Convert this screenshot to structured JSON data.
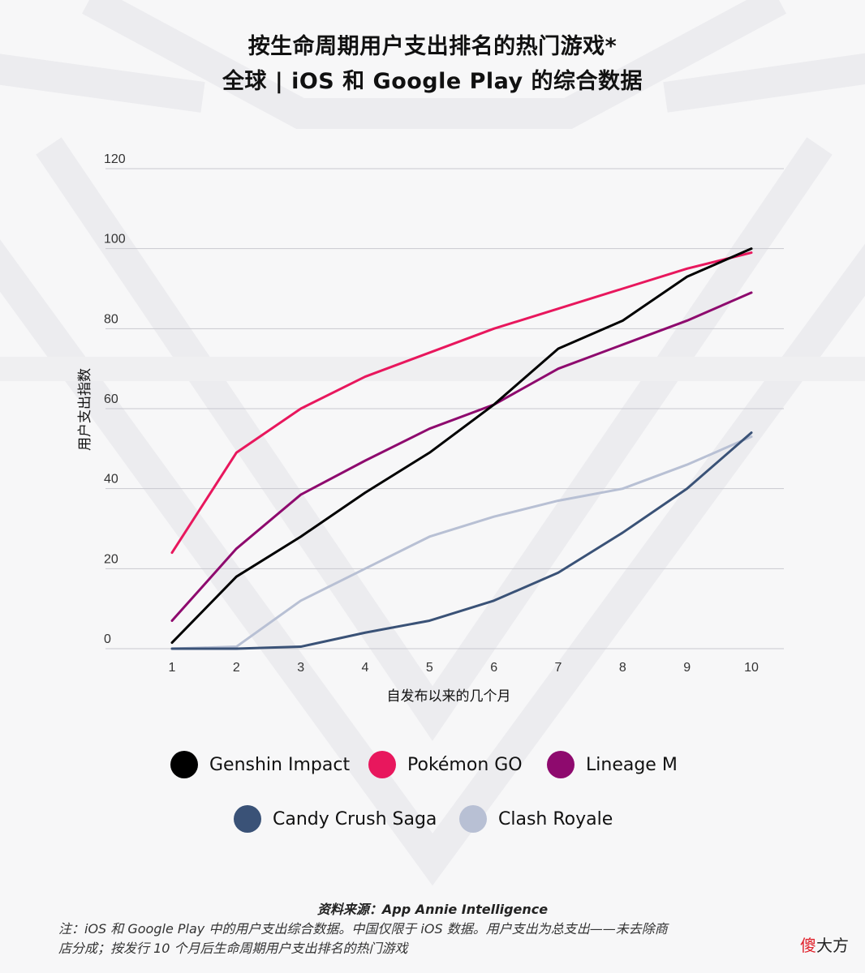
{
  "title_line1": "按生命周期用户支出排名的热门游戏*",
  "title_line2": "全球 | iOS 和 Google Play 的综合数据",
  "chart_data": {
    "type": "line",
    "ylabel": "用户支出指数",
    "xlabel": "自发布以来的几个月",
    "ylim": [
      0,
      120
    ],
    "yticks": [
      0,
      20,
      40,
      60,
      80,
      100,
      120
    ],
    "x": [
      1,
      2,
      3,
      4,
      5,
      6,
      7,
      8,
      9,
      10
    ],
    "grid": true,
    "legend_position": "bottom",
    "series": [
      {
        "name": "Genshin Impact",
        "color": "#000000",
        "values": [
          1.5,
          18,
          28,
          39,
          49,
          61,
          75,
          82,
          93,
          100
        ]
      },
      {
        "name": "Pokémon GO",
        "color": "#e8175d",
        "values": [
          24,
          49,
          60,
          68,
          74,
          80,
          85,
          90,
          95,
          99
        ]
      },
      {
        "name": "Lineage M",
        "color": "#8e0a6e",
        "values": [
          7,
          25,
          38.5,
          47,
          55,
          61,
          70,
          76,
          82,
          89
        ]
      },
      {
        "name": "Candy Crush Saga",
        "color": "#3a5277",
        "values": [
          0,
          0,
          0.5,
          4,
          7,
          12,
          19,
          29,
          40,
          54
        ]
      },
      {
        "name": "Clash Royale",
        "color": "#b8c0d4",
        "values": [
          0,
          0.5,
          12,
          20,
          28,
          33,
          37,
          40,
          46,
          53
        ]
      }
    ]
  },
  "source": "资料来源：App Annie Intelligence",
  "note_line1": "注：iOS 和 Google Play 中的用户支出综合数据。中国仅限于 iOS 数据。用户支出为总支出——未去除商",
  "note_line2": "店分成；按发行 10 个月后生命周期用户支出排名的热门游戏",
  "watermark_red": "傻",
  "watermark_rest": "大方"
}
